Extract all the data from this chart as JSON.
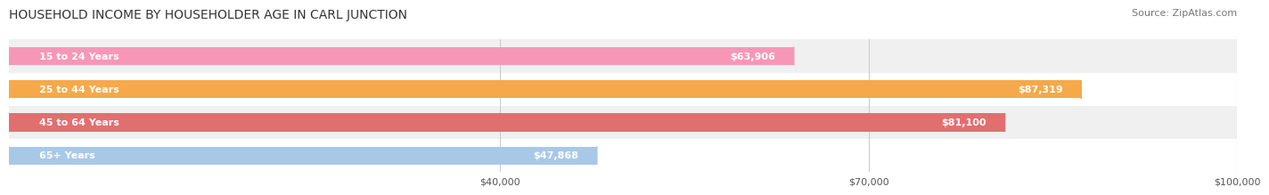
{
  "title": "HOUSEHOLD INCOME BY HOUSEHOLDER AGE IN CARL JUNCTION",
  "source": "Source: ZipAtlas.com",
  "categories": [
    "15 to 24 Years",
    "25 to 44 Years",
    "45 to 64 Years",
    "65+ Years"
  ],
  "values": [
    63906,
    87319,
    81100,
    47868
  ],
  "bar_colors": [
    "#F797B8",
    "#F5A94A",
    "#E07070",
    "#A8C8E8"
  ],
  "row_colors": [
    "#F0F0F0",
    "#FFFFFF",
    "#F0F0F0",
    "#FFFFFF"
  ],
  "xmin": 0,
  "xmax": 100000,
  "xticks": [
    40000,
    70000,
    100000
  ],
  "xtick_labels": [
    "$40,000",
    "$70,000",
    "$100,000"
  ],
  "value_labels": [
    "$63,906",
    "$87,319",
    "$81,100",
    "$47,868"
  ],
  "bar_height": 0.55,
  "title_fontsize": 10,
  "label_fontsize": 8,
  "source_fontsize": 8
}
